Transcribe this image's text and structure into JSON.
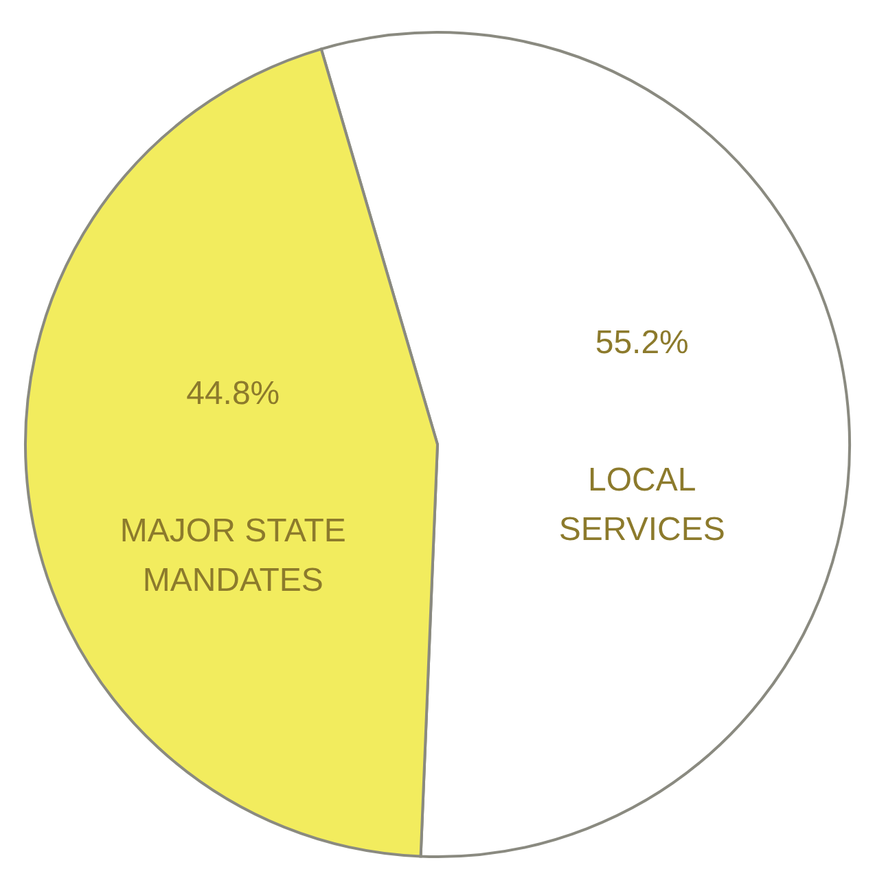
{
  "chart_data": {
    "type": "pie",
    "categories": [
      "LOCAL\nSERVICES",
      "MAJOR STATE\nMANDATES"
    ],
    "values": [
      55.2,
      44.8
    ],
    "colors": [
      "#ffffff",
      "#f2ec5e"
    ],
    "value_labels": [
      "55.2%",
      "44.8%"
    ]
  }
}
